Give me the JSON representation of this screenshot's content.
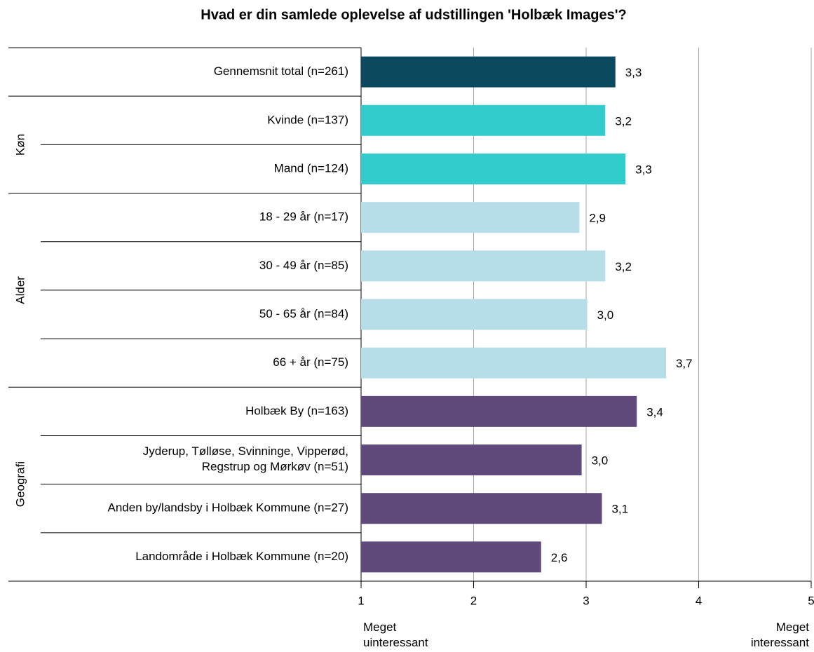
{
  "chart_data": {
    "type": "barh",
    "title": "Hvad er din samlede oplevelse af udstillingen 'Holbæk Images'?",
    "categories": [
      "Gennemsnit total (n=261)",
      "Kvinde (n=137)",
      "Mand (n=124)",
      "18 - 29 år (n=17)",
      "30 - 49 år (n=85)",
      "50 - 65 år (n=84)",
      "66 + år (n=75)",
      "Holbæk By (n=163)",
      "Jyderup, Tølløse, Svinninge, Vipperød,\nRegstrup og Mørkøv (n=51)",
      "Anden by/landsby i Holbæk Kommune (n=27)",
      "Landområde i Holbæk Kommune (n=20)"
    ],
    "groups": [
      null,
      "Køn",
      "Køn",
      "Alder",
      "Alder",
      "Alder",
      "Alder",
      "Geografi",
      "Geografi",
      "Geografi",
      "Geografi"
    ],
    "values": [
      3.26,
      3.17,
      3.35,
      2.94,
      3.17,
      3.01,
      3.71,
      3.45,
      2.96,
      3.14,
      2.6
    ],
    "value_labels": [
      "3,3",
      "3,2",
      "3,3",
      "2,9",
      "3,2",
      "3,0",
      "3,7",
      "3,4",
      "3,0",
      "3,1",
      "2,6"
    ],
    "colors": [
      "#0b4a5e",
      "#33cccc",
      "#33cccc",
      "#b7dde8",
      "#b7dde8",
      "#b7dde8",
      "#b7dde8",
      "#604a7b",
      "#604a7b",
      "#604a7b",
      "#604a7b"
    ],
    "xlim": [
      1,
      5
    ],
    "xticks": [
      1,
      2,
      3,
      4,
      5
    ],
    "grid": true,
    "x_end_labels": [
      [
        "Meget",
        "uinteressant"
      ],
      [
        "Meget",
        "interessant"
      ]
    ]
  }
}
